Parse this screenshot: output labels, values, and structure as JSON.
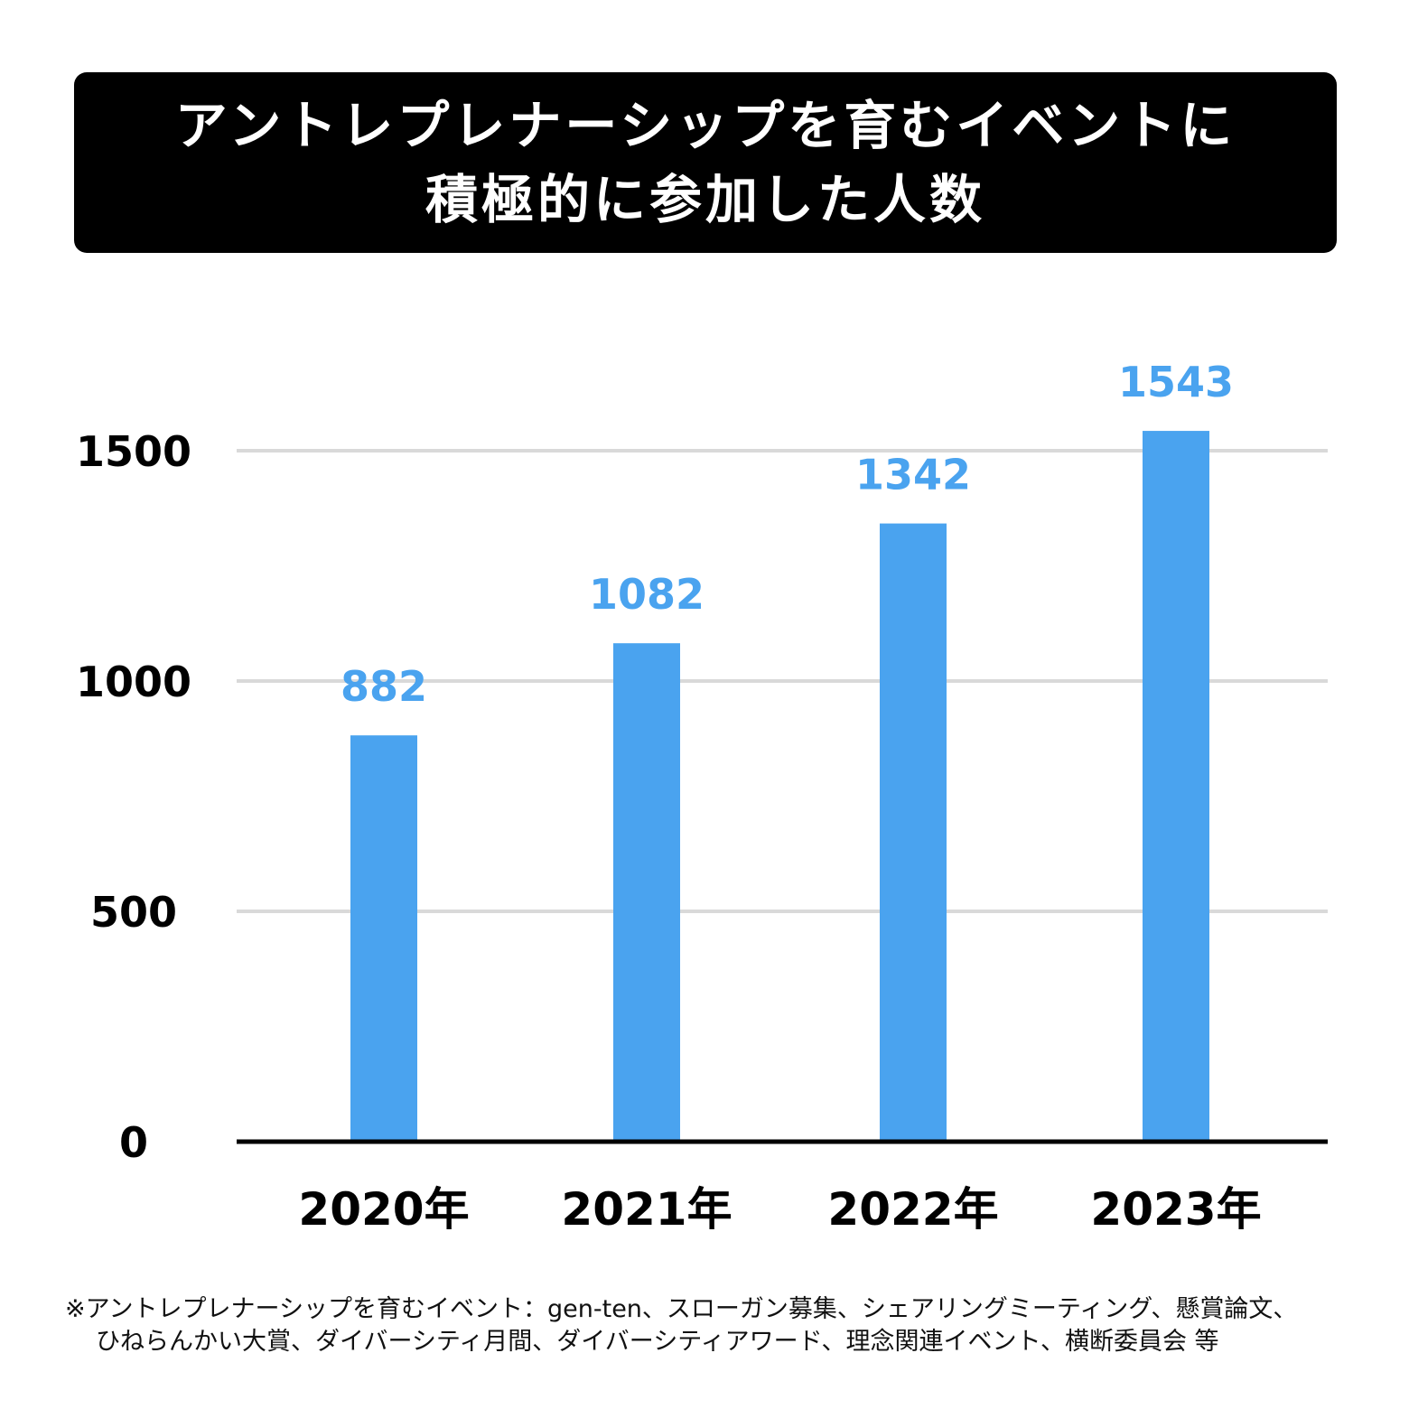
{
  "title": {
    "line1": "アントレプレナーシップを育むイベントに",
    "line2": "積極的に参加した人数"
  },
  "chart_data": {
    "type": "bar",
    "categories": [
      "2020年",
      "2021年",
      "2022年",
      "2023年"
    ],
    "values": [
      882,
      1082,
      1342,
      1543
    ],
    "data_labels": [
      "882",
      "1082",
      "1342",
      "1543"
    ],
    "y_ticks": [
      "0",
      "500",
      "1000",
      "1500"
    ],
    "ylim": [
      0,
      1500
    ],
    "grid": true,
    "bar_color": "#4aa3ef",
    "label_color": "#4aa3ef",
    "grid_color": "#d9d9d9"
  },
  "note": {
    "line1": "※アントレプレナーシップを育むイベント：gen-ten、スローガン募集、シェアリングミーティング、懸賞論文、",
    "line2": "ひねらんかい大賞、ダイバーシティ月間、ダイバーシティアワード、理念関連イベント、横断委員会 等"
  }
}
